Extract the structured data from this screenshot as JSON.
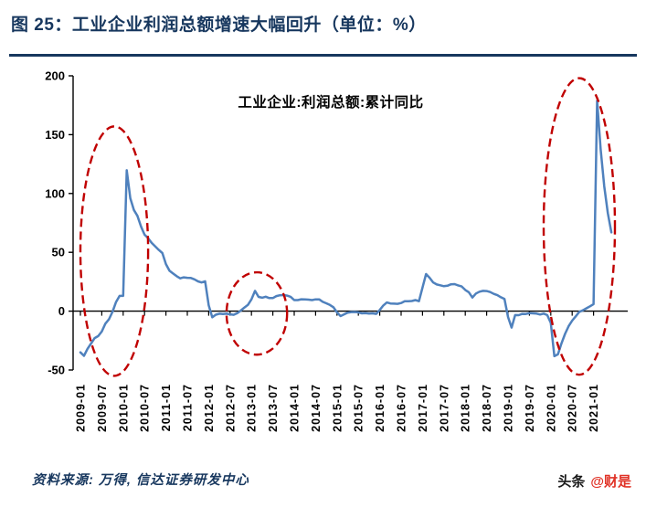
{
  "header": {
    "title": "图 25：工业企业利润总额增速大幅回升（单位：%）"
  },
  "footer": {
    "source": "资料来源: 万得, 信达证券研发中心",
    "watermark_left": "头条",
    "watermark_right": "@财是"
  },
  "colors": {
    "accent_navy": "#17375E",
    "line_blue": "#4F81BD",
    "annotation_red": "#C00000"
  },
  "chart_data": {
    "type": "line",
    "series_label": "工业企业:利润总额:累计同比",
    "ylim": [
      -50,
      200
    ],
    "y_ticks": [
      200,
      150,
      100,
      50,
      0,
      -50
    ],
    "grid": false,
    "legend_position": "top-center-inside",
    "x_tick_labels": [
      "2009-01",
      "2009-07",
      "2010-01",
      "2010-07",
      "2011-01",
      "2011-07",
      "2012-01",
      "2012-07",
      "2013-01",
      "2013-07",
      "2014-01",
      "2014-07",
      "2015-01",
      "2015-07",
      "2016-01",
      "2016-07",
      "2017-01",
      "2017-07",
      "2018-01",
      "2018-07",
      "2019-01",
      "2019-07",
      "2020-01",
      "2020-07",
      "2021-01"
    ],
    "x": [
      "2009-01",
      "2009-02",
      "2009-03",
      "2009-04",
      "2009-05",
      "2009-06",
      "2009-07",
      "2009-08",
      "2009-09",
      "2009-10",
      "2009-11",
      "2009-12",
      "2010-01",
      "2010-02",
      "2010-03",
      "2010-04",
      "2010-05",
      "2010-06",
      "2010-07",
      "2010-08",
      "2010-09",
      "2010-10",
      "2010-11",
      "2010-12",
      "2011-01",
      "2011-02",
      "2011-03",
      "2011-04",
      "2011-05",
      "2011-06",
      "2011-07",
      "2011-08",
      "2011-09",
      "2011-10",
      "2011-11",
      "2011-12",
      "2012-01",
      "2012-02",
      "2012-03",
      "2012-04",
      "2012-05",
      "2012-06",
      "2012-07",
      "2012-08",
      "2012-09",
      "2012-10",
      "2012-11",
      "2012-12",
      "2013-01",
      "2013-02",
      "2013-03",
      "2013-04",
      "2013-05",
      "2013-06",
      "2013-07",
      "2013-08",
      "2013-09",
      "2013-10",
      "2013-11",
      "2013-12",
      "2014-01",
      "2014-02",
      "2014-03",
      "2014-04",
      "2014-05",
      "2014-06",
      "2014-07",
      "2014-08",
      "2014-09",
      "2014-10",
      "2014-11",
      "2014-12",
      "2015-01",
      "2015-02",
      "2015-03",
      "2015-04",
      "2015-05",
      "2015-06",
      "2015-07",
      "2015-08",
      "2015-09",
      "2015-10",
      "2015-11",
      "2015-12",
      "2016-01",
      "2016-02",
      "2016-03",
      "2016-04",
      "2016-05",
      "2016-06",
      "2016-07",
      "2016-08",
      "2016-09",
      "2016-10",
      "2016-11",
      "2016-12",
      "2017-01",
      "2017-02",
      "2017-03",
      "2017-04",
      "2017-05",
      "2017-06",
      "2017-07",
      "2017-08",
      "2017-09",
      "2017-10",
      "2017-11",
      "2017-12",
      "2018-01",
      "2018-02",
      "2018-03",
      "2018-04",
      "2018-05",
      "2018-06",
      "2018-07",
      "2018-08",
      "2018-09",
      "2018-10",
      "2018-11",
      "2018-12",
      "2019-01",
      "2019-02",
      "2019-03",
      "2019-04",
      "2019-05",
      "2019-06",
      "2019-07",
      "2019-08",
      "2019-09",
      "2019-10",
      "2019-11",
      "2019-12",
      "2020-01",
      "2020-02",
      "2020-03",
      "2020-04",
      "2020-05",
      "2020-06",
      "2020-07",
      "2020-08",
      "2020-09",
      "2020-10",
      "2020-11",
      "2020-12",
      "2021-01",
      "2021-02",
      "2021-03",
      "2021-04",
      "2021-05",
      "2021-06"
    ],
    "values": [
      -35.0,
      -38.0,
      -32.0,
      -27.5,
      -22.9,
      -21.2,
      -17.3,
      -10.6,
      -7.0,
      -0.6,
      7.8,
      13.0,
      13.0,
      119.7,
      96.0,
      86.0,
      81.0,
      72.0,
      65.0,
      62.0,
      58.0,
      55.0,
      52.0,
      49.4,
      40.0,
      34.3,
      32.0,
      29.7,
      27.9,
      28.7,
      28.3,
      28.2,
      27.0,
      25.3,
      24.4,
      25.4,
      5.0,
      -5.2,
      -3.0,
      -2.2,
      -2.4,
      -2.2,
      -2.7,
      -3.1,
      -1.8,
      0.5,
      3.0,
      5.3,
      10.0,
      17.2,
      12.1,
      11.4,
      12.3,
      11.1,
      11.1,
      12.8,
      13.5,
      13.7,
      13.2,
      12.2,
      9.4,
      9.4,
      10.1,
      10.0,
      9.8,
      9.4,
      10.0,
      10.0,
      7.9,
      6.7,
      5.3,
      3.3,
      -1.0,
      -4.2,
      -2.7,
      -1.3,
      -0.8,
      -0.7,
      -1.0,
      -1.9,
      -1.7,
      -2.0,
      -1.9,
      -2.3,
      1.0,
      4.8,
      7.4,
      6.5,
      6.4,
      6.2,
      6.9,
      8.4,
      8.4,
      8.6,
      9.4,
      8.5,
      20.0,
      31.5,
      28.3,
      24.4,
      22.7,
      22.0,
      21.2,
      21.6,
      22.8,
      23.0,
      21.9,
      21.0,
      18.0,
      16.1,
      11.6,
      15.0,
      16.5,
      17.2,
      17.1,
      16.2,
      14.7,
      13.6,
      11.8,
      10.3,
      -5.0,
      -14.0,
      -3.3,
      -3.4,
      -2.3,
      -2.4,
      -1.7,
      -1.9,
      -2.1,
      -2.9,
      -2.1,
      -3.3,
      -10.0,
      -38.3,
      -36.7,
      -27.4,
      -19.3,
      -12.8,
      -8.1,
      -4.4,
      -0.6,
      0.7,
      2.4,
      4.1,
      6.0,
      178.9,
      137.3,
      106.1,
      83.4,
      66.9
    ],
    "annotations": [
      {
        "shape": "ellipse",
        "x_from": "2009-01",
        "x_to": "2010-08",
        "y_from": -55,
        "y_to": 157
      },
      {
        "shape": "ellipse",
        "x_from": "2012-06",
        "x_to": "2013-11",
        "y_from": -37,
        "y_to": 33
      },
      {
        "shape": "ellipse",
        "x_from": "2019-11",
        "x_to": "2021-07",
        "y_from": -54,
        "y_to": 198
      }
    ]
  }
}
